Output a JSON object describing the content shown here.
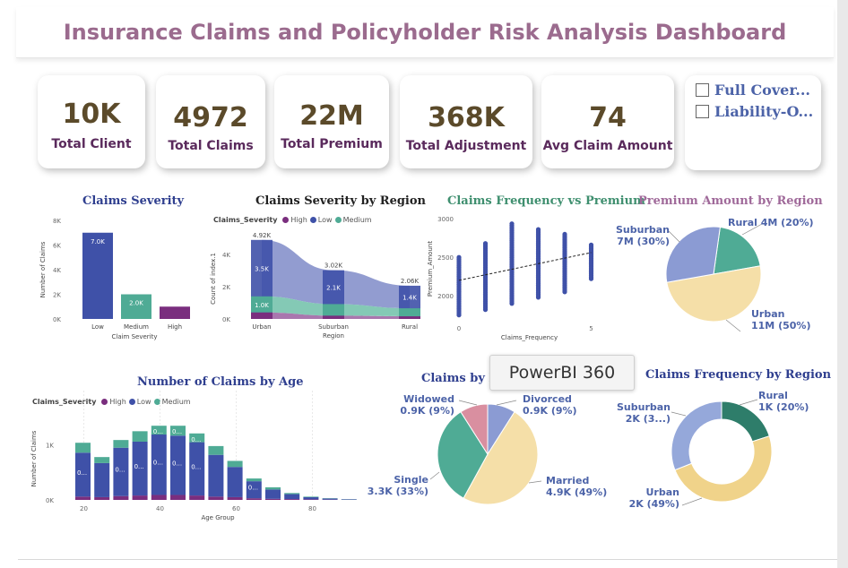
{
  "title": "Insurance Claims and Policyholder Risk Analysis Dashboard",
  "kpis": [
    {
      "value": "10K",
      "label": "Total Client"
    },
    {
      "value": "4972",
      "label": "Total Claims"
    },
    {
      "value": "22M",
      "label": "Total Premium"
    },
    {
      "value": "368K",
      "label": "Total Adjustment"
    },
    {
      "value": "74",
      "label": "Avg Claim Amount"
    }
  ],
  "slicer": {
    "items": [
      "Full Cover...",
      "Liability-O..."
    ]
  },
  "tooltip": "PowerBI 360",
  "colors": {
    "high": "#7a2e7e",
    "low": "#3f51a8",
    "medium": "#4fab95",
    "pie_blue": "#8b9bd3",
    "pie_green": "#4fab95",
    "pie_yellow": "#f5dfa8",
    "pie_pink": "#d98fa0",
    "pie_darkgreen": "#2e7d6a",
    "donut_blue": "#95a8da",
    "donut_yellow": "#f0d38a"
  },
  "chart_data": [
    {
      "id": "claims_severity",
      "type": "bar",
      "title": "Claims Severity",
      "xlabel": "Claim Severity",
      "ylabel": "Number of Claims",
      "categories": [
        "Low",
        "Medium",
        "High"
      ],
      "values": [
        7000,
        2000,
        1000
      ],
      "value_labels": [
        "7.0K",
        "2.0K",
        ""
      ],
      "ylim": [
        0,
        8000
      ],
      "yticks": [
        "0K",
        "2K",
        "4K",
        "6K",
        "8K"
      ]
    },
    {
      "id": "severity_by_region",
      "type": "area",
      "title": "Claims Severity by Region",
      "legend_title": "Claims_Severity",
      "legend": [
        "High",
        "Low",
        "Medium"
      ],
      "xlabel": "Region",
      "ylabel": "Count of index.1",
      "categories": [
        "Urban",
        "Suburban",
        "Rural"
      ],
      "series": [
        {
          "name": "High",
          "values": [
            0.4,
            0.2,
            0.16
          ]
        },
        {
          "name": "Medium",
          "values": [
            1.0,
            0.72,
            0.5
          ]
        },
        {
          "name": "Low",
          "values": [
            3.5,
            2.1,
            1.4
          ]
        }
      ],
      "totals": [
        "4.92K",
        "3.02K",
        "2.06K"
      ],
      "value_labels": {
        "Low": [
          "3.5K",
          "2.1K",
          "1.4K"
        ],
        "Medium": [
          "1.0K",
          "",
          ""
        ]
      },
      "ylim": [
        0,
        5
      ],
      "yticks": [
        "0K",
        "2K",
        "4K"
      ]
    },
    {
      "id": "frequency_vs_premium",
      "type": "scatter",
      "title": "Claims Frequency vs Premium",
      "xlabel": "Claims_Frequency",
      "ylabel": "Premium_Amount",
      "xlim": [
        0,
        6
      ],
      "ylim": [
        1700,
        3000
      ],
      "xticks": [
        "0",
        "5"
      ],
      "yticks": [
        "2000",
        "2500",
        "3000"
      ],
      "columns": [
        {
          "x": 0,
          "ymin": 1750,
          "ymax": 2510
        },
        {
          "x": 1,
          "ymin": 1820,
          "ymax": 2680
        },
        {
          "x": 2,
          "ymin": 1900,
          "ymax": 2950
        },
        {
          "x": 3,
          "ymin": 1980,
          "ymax": 2880
        },
        {
          "x": 4,
          "ymin": 2050,
          "ymax": 2800
        },
        {
          "x": 5,
          "ymin": 2220,
          "ymax": 2660
        }
      ],
      "trend": [
        [
          0,
          2200
        ],
        [
          5,
          2560
        ]
      ]
    },
    {
      "id": "premium_by_region",
      "type": "pie",
      "title": "Premium Amount by Region",
      "slices": [
        {
          "name": "Rural",
          "value": 20,
          "label": "Rural 4M (20%)"
        },
        {
          "name": "Urban",
          "value": 50,
          "label": "Urban 11M (50%)"
        },
        {
          "name": "Suburban",
          "value": 30,
          "label": "Suburban 7M (30%)"
        }
      ]
    },
    {
      "id": "claims_by_age",
      "type": "bar",
      "title": "Number of Claims by Age",
      "legend_title": "Claims_Severity",
      "legend": [
        "High",
        "Low",
        "Medium"
      ],
      "xlabel": "Age Group",
      "ylabel": "Number of Claims",
      "xticks": [
        "20",
        "40",
        "60",
        "80"
      ],
      "yticks": [
        "0K",
        "1K"
      ],
      "categories": [
        "18-22",
        "23-27",
        "28-32",
        "33-37",
        "38-42",
        "43-47",
        "48-52",
        "53-57",
        "58-62",
        "63-67",
        "68-72",
        "73-77",
        "78-82",
        "83-87",
        "88-92"
      ],
      "series": [
        {
          "name": "High",
          "values": [
            60,
            50,
            70,
            80,
            90,
            90,
            80,
            60,
            50,
            30,
            20,
            15,
            10,
            5,
            2
          ]
        },
        {
          "name": "Low",
          "values": [
            800,
            620,
            880,
            980,
            1100,
            1080,
            970,
            760,
            550,
            310,
            170,
            90,
            40,
            20,
            10
          ]
        },
        {
          "name": "Medium",
          "values": [
            180,
            110,
            140,
            190,
            160,
            180,
            160,
            160,
            110,
            50,
            40,
            20,
            10,
            5,
            3
          ]
        }
      ],
      "value_labels": {
        "Low": [
          "0...",
          "",
          "0...",
          "0...",
          "0...",
          "0...",
          "0...",
          "",
          "",
          "0...",
          "",
          "",
          "",
          "",
          ""
        ],
        "Medium": [
          "",
          "",
          "",
          "",
          "0...",
          "0...",
          "0...",
          "",
          "",
          "",
          "",
          "",
          "",
          "",
          ""
        ]
      },
      "ylim": [
        0,
        1500
      ]
    },
    {
      "id": "claims_by_marital",
      "type": "pie",
      "title": "Claims by M",
      "slices": [
        {
          "name": "Divorced",
          "value": 9,
          "label": "Divorced 0.9K (9%)"
        },
        {
          "name": "Married",
          "value": 49,
          "label": "Married 4.9K (49%)"
        },
        {
          "name": "Single",
          "value": 33,
          "label": "Single 3.3K (33%)"
        },
        {
          "name": "Widowed",
          "value": 9,
          "label": "Widowed 0.9K (9%)"
        }
      ]
    },
    {
      "id": "frequency_by_region",
      "type": "pie",
      "title": "Claims Frequency by Region",
      "donut": true,
      "slices": [
        {
          "name": "Rural",
          "value": 20,
          "label": "Rural 1K (20%)"
        },
        {
          "name": "Urban",
          "value": 49,
          "label": "Urban 2K (49%)"
        },
        {
          "name": "Suburban",
          "value": 31,
          "label": "Suburban 2K (3...)"
        }
      ]
    }
  ]
}
